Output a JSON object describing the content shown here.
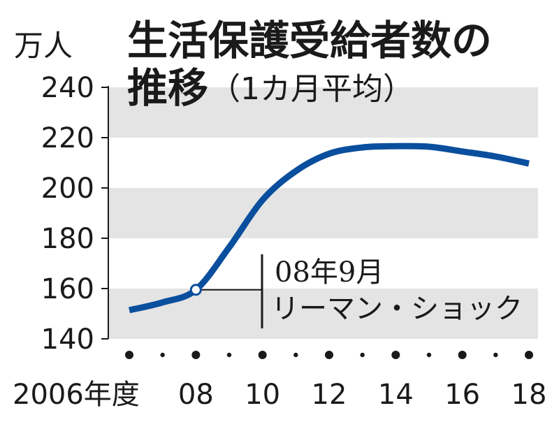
{
  "chart_data": {
    "type": "line",
    "title": "生活保護受給者数の",
    "title_line2": "推移",
    "subtitle": "（1カ月平均）",
    "unit_label": "万人",
    "x_first_label": "2006年度",
    "x": [
      2006,
      2007,
      2008,
      2009,
      2010,
      2011,
      2012,
      2013,
      2014,
      2015,
      2016,
      2017,
      2018
    ],
    "xtick_labels": [
      {
        "x": 2008,
        "label": "08"
      },
      {
        "x": 2010,
        "label": "10"
      },
      {
        "x": 2012,
        "label": "12"
      },
      {
        "x": 2014,
        "label": "14"
      },
      {
        "x": 2016,
        "label": "16"
      },
      {
        "x": 2018,
        "label": "18"
      }
    ],
    "ylim": [
      140,
      240
    ],
    "yticks": [
      140,
      160,
      180,
      200,
      220,
      240
    ],
    "ytick_labels": [
      "140",
      "160",
      "180",
      "200",
      "220",
      "240"
    ],
    "series": [
      {
        "values": [
          151.4,
          154.5,
          159.5,
          176.4,
          195.2,
          206.7,
          213.6,
          216.1,
          216.6,
          216.4,
          214.5,
          212.5,
          209.7
        ]
      }
    ],
    "highlight": {
      "x": 2008,
      "y": 159.5
    },
    "annotation": {
      "line1": "08年9月",
      "line2": "リーマン・ショック"
    },
    "colors": {
      "line": "#0a4f9e",
      "band": "#e4e4e4",
      "axis": "#1a1a1a"
    }
  }
}
